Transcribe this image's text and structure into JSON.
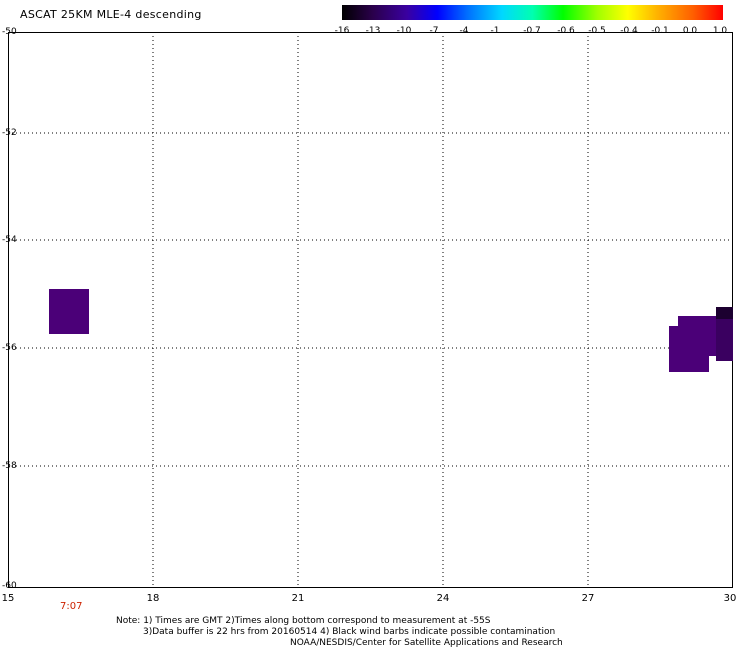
{
  "title": "ASCAT 25KM MLE-4 descending",
  "colorbar": {
    "colors": [
      "#000000",
      "#2a004a",
      "#3a00a0",
      "#0000ff",
      "#0070ff",
      "#00d8ff",
      "#00ffb0",
      "#00ff00",
      "#a0ff00",
      "#ffff00",
      "#ffb000",
      "#ff6000",
      "#ff0000"
    ],
    "labels": [
      "-16",
      "-13",
      "-10",
      "-7",
      "-4",
      "-1",
      "-0.7",
      "-0.6",
      "-0.5",
      "-0.4",
      "-0.1",
      "0.0",
      "1.0"
    ]
  },
  "axes": {
    "y_labels": [
      "-50",
      "-52",
      "-54",
      "-56",
      "-58",
      "-60"
    ],
    "x_labels": [
      "15",
      "18",
      "21",
      "24",
      "27",
      "30"
    ],
    "time_label": "7:07"
  },
  "notes": {
    "line1": "Note: 1) Times are GMT 2)Times along bottom correspond to measurement at -55S",
    "line2": "3)Data buffer is 22 hrs from 20160514 4) Black wind barbs indicate possible contamination",
    "line3": "NOAA/NESDIS/Center for Satellite Applications and Research"
  },
  "colors": {
    "swath_purple": "#4b0078",
    "swath_dark": "#1c0030"
  }
}
